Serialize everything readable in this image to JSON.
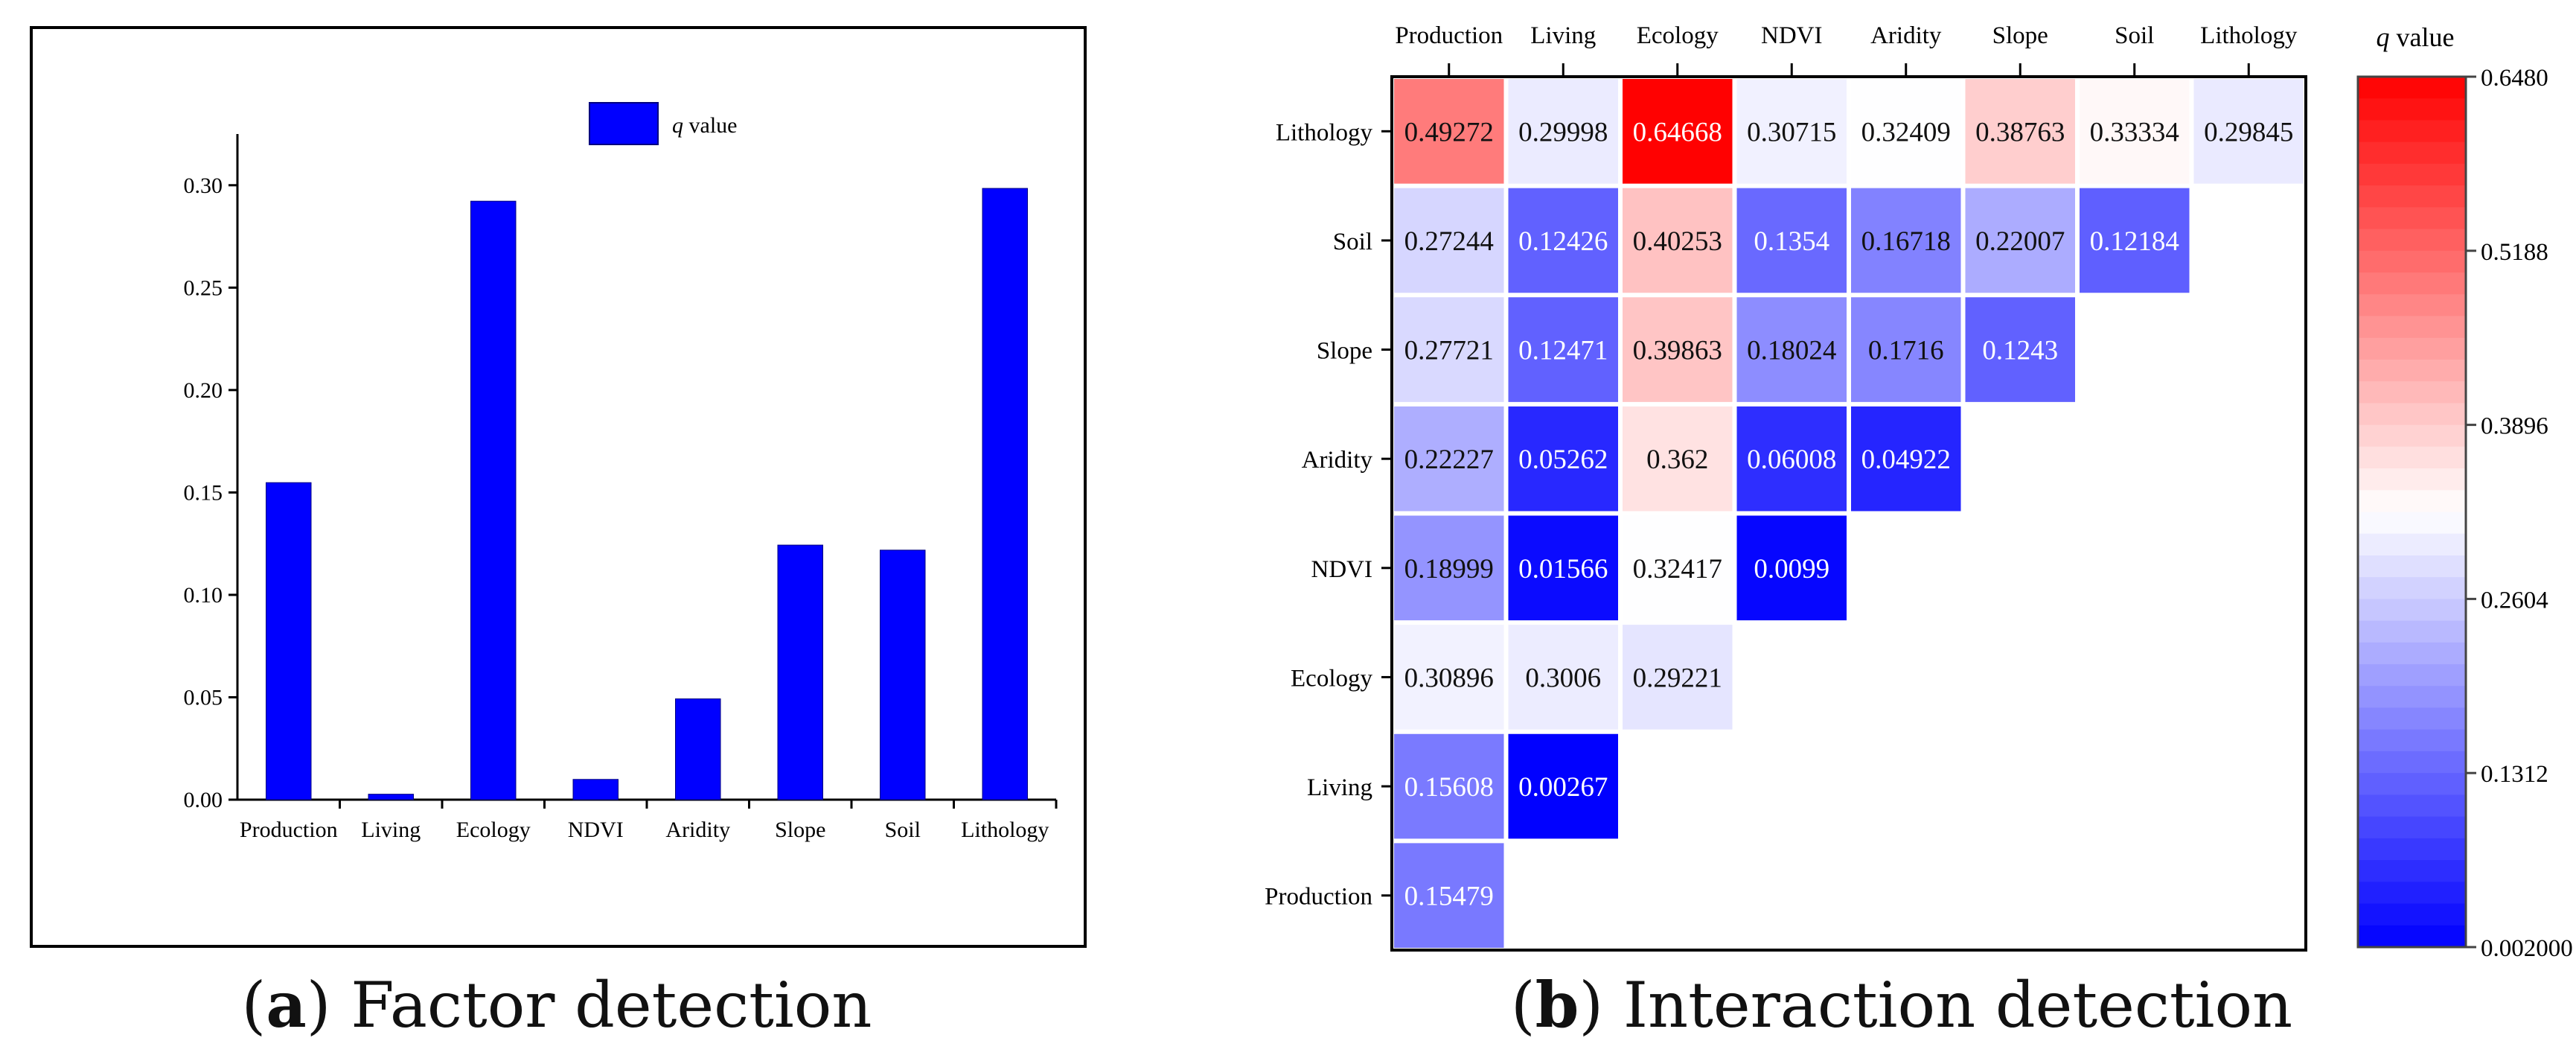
{
  "chart_data": [
    {
      "type": "bar",
      "title": "",
      "caption_letter": "a",
      "caption_text": "Factor detection",
      "legend": "q value",
      "legend_placement": "top-center",
      "categories": [
        "Production",
        "Living",
        "Ecology",
        "NDVI",
        "Aridity",
        "Slope",
        "Soil",
        "Lithology"
      ],
      "values": [
        0.15479,
        0.00267,
        0.29221,
        0.0099,
        0.04922,
        0.1243,
        0.12184,
        0.29845
      ],
      "ylim": [
        0,
        0.325
      ],
      "yticks": [
        "0.00",
        "0.05",
        "0.10",
        "0.15",
        "0.20",
        "0.25",
        "0.30"
      ],
      "xlabel": "",
      "ylabel": "",
      "bar_color": "#0000ff"
    },
    {
      "type": "heatmap",
      "caption_letter": "b",
      "caption_text": "Interaction detection",
      "columns": [
        "Production",
        "Living",
        "Ecology",
        "NDVI",
        "Aridity",
        "Slope",
        "Soil",
        "Lithology"
      ],
      "rows": [
        "Lithology",
        "Soil",
        "Slope",
        "Aridity",
        "NDVI",
        "Ecology",
        "Living",
        "Production"
      ],
      "values": [
        [
          "0.49272",
          "0.29998",
          "0.64668",
          "0.30715",
          "0.32409",
          "0.38763",
          "0.33334",
          "0.29845"
        ],
        [
          "0.27244",
          "0.12426",
          "0.40253",
          "0.1354",
          "0.16718",
          "0.22007",
          "0.12184"
        ],
        [
          "0.27721",
          "0.12471",
          "0.39863",
          "0.18024",
          "0.1716",
          "0.1243"
        ],
        [
          "0.22227",
          "0.05262",
          "0.362",
          "0.06008",
          "0.04922"
        ],
        [
          "0.18999",
          "0.01566",
          "0.32417",
          "0.0099"
        ],
        [
          "0.30896",
          "0.3006",
          "0.29221"
        ],
        [
          "0.15608",
          "0.00267"
        ],
        [
          "0.15479"
        ]
      ],
      "colorbar": {
        "title": "q value",
        "range": [
          0.002,
          0.648
        ],
        "ticks": [
          "0.6480",
          "0.5188",
          "0.3896",
          "0.2604",
          "0.1312",
          "0.002000"
        ],
        "colors": {
          "low": "#0000ff",
          "mid": "#ffffff",
          "high": "#ff0000"
        }
      }
    }
  ]
}
